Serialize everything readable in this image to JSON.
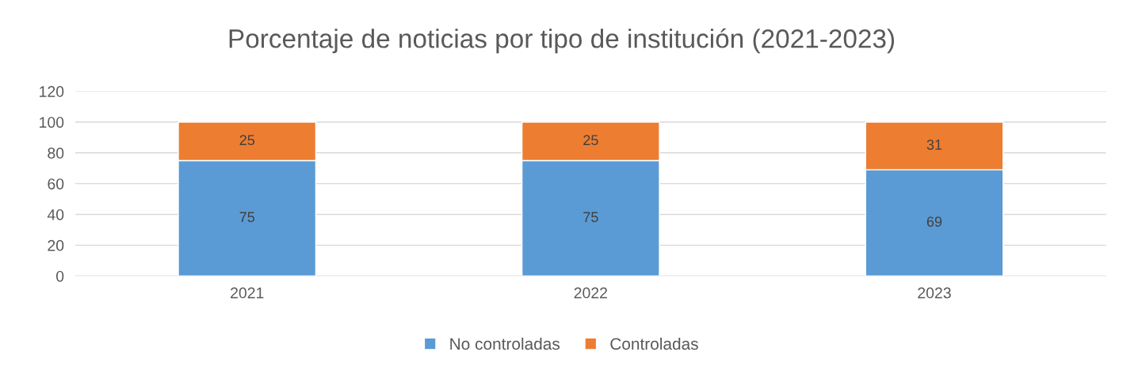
{
  "chart_data": {
    "type": "bar",
    "title": "Porcentaje de noticias por tipo de institución (2021-2023)",
    "categories": [
      "2021",
      "2022",
      "2023"
    ],
    "series": [
      {
        "name": "No controladas",
        "color": "#5b9bd5",
        "values": [
          75,
          75,
          69
        ]
      },
      {
        "name": "Controladas",
        "color": "#ed7d31",
        "values": [
          25,
          25,
          31
        ]
      }
    ],
    "stacked": true,
    "ylim": [
      0,
      120
    ],
    "yticks": [
      0,
      20,
      40,
      60,
      80,
      100,
      120
    ],
    "grid": "y",
    "legend": "bottom",
    "data_labels": true
  }
}
